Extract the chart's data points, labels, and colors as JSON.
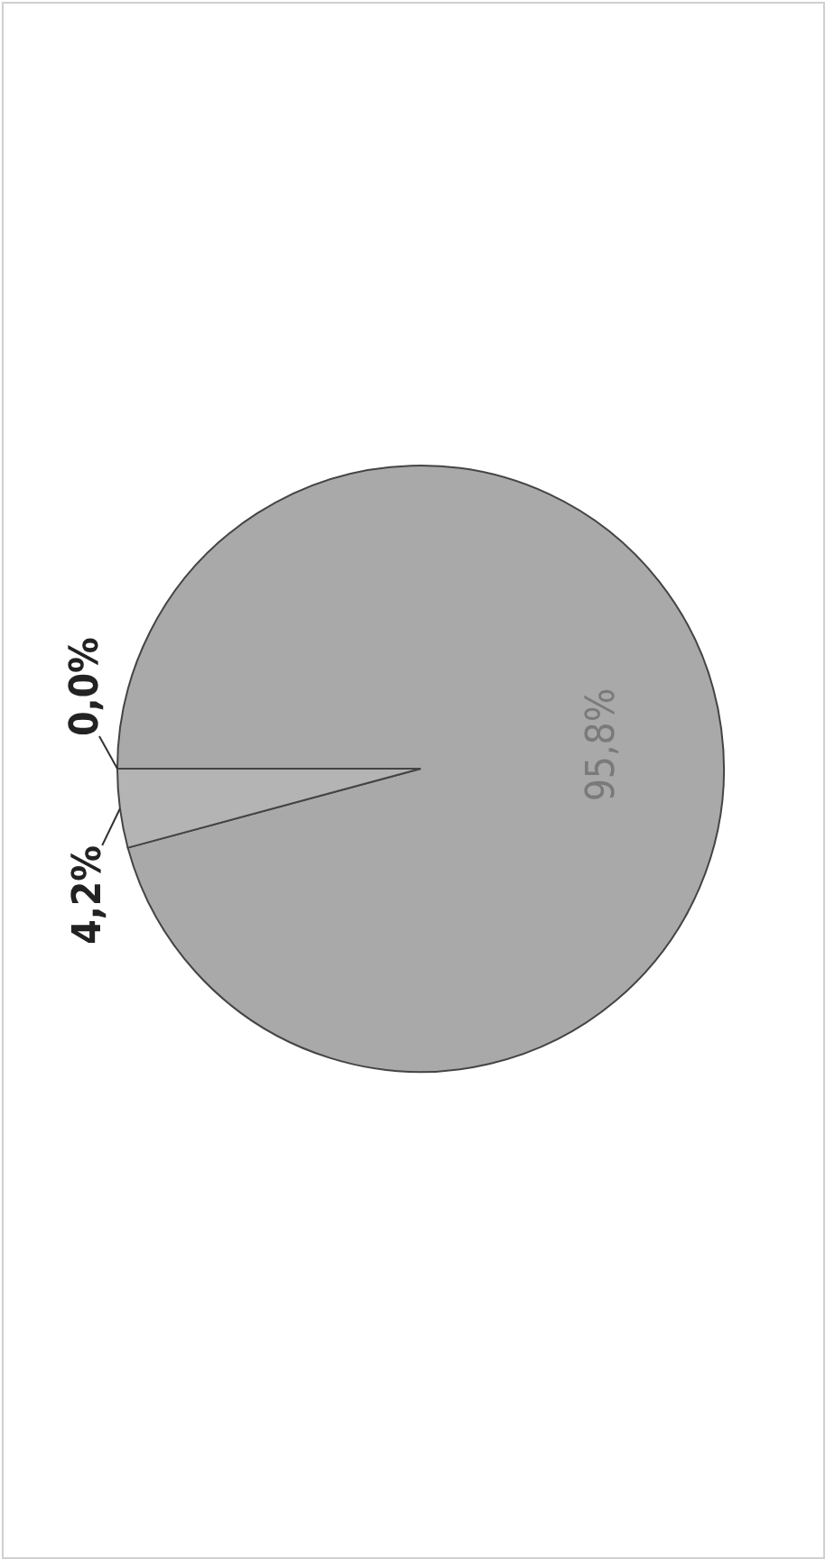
{
  "chart_data": {
    "type": "pie",
    "categories": [
      null,
      null,
      null
    ],
    "values": [
      0.0,
      95.8,
      4.2
    ],
    "colors": [
      "#a6a6a6",
      "#a9a9a9",
      "#b4b4b4"
    ],
    "value_labels": [
      "0,0%",
      "95,8%",
      "4,2%"
    ]
  }
}
